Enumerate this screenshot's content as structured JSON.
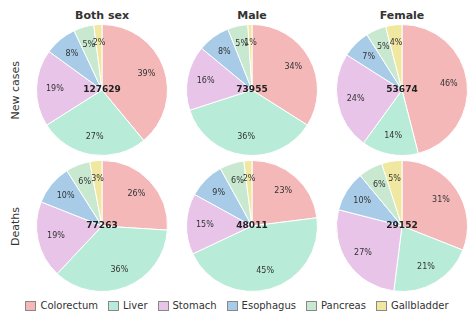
{
  "chart_data": [
    {
      "type": "pie",
      "title": "Both sex",
      "ylabel": "New cases",
      "categories": [
        "Colorectum",
        "Liver",
        "Stomach",
        "Esophagus",
        "Pancreas",
        "Gallbladder"
      ],
      "values": [
        39,
        27,
        19,
        8,
        5,
        2
      ],
      "value_labels": [
        "39%",
        "27%",
        "19%",
        "8%",
        "5%",
        "2%"
      ],
      "colors": [
        "#f4b8b8",
        "#b8ecd8",
        "#e8c4e8",
        "#a8cce8",
        "#c8e8d0",
        "#f0e8a0"
      ],
      "data_labels": true,
      "annotations": [
        {
          "text": "127629"
        }
      ],
      "legend": "bottom"
    },
    {
      "type": "pie",
      "title": "Male",
      "categories": [
        "Colorectum",
        "Liver",
        "Stomach",
        "Esophagus",
        "Pancreas",
        "Gallbladder"
      ],
      "values": [
        34,
        36,
        16,
        8,
        5,
        1
      ],
      "value_labels": [
        "34%",
        "36%",
        "16%",
        "8%",
        "5%",
        "1%"
      ],
      "colors": [
        "#f4b8b8",
        "#b8ecd8",
        "#e8c4e8",
        "#a8cce8",
        "#c8e8d0",
        "#f0e8a0"
      ],
      "data_labels": true,
      "annotations": [
        {
          "text": "73955"
        }
      ]
    },
    {
      "type": "pie",
      "title": "Female",
      "categories": [
        "Colorectum",
        "Liver",
        "Stomach",
        "Esophagus",
        "Pancreas",
        "Gallbladder"
      ],
      "values": [
        46,
        14,
        24,
        7,
        5,
        4
      ],
      "value_labels": [
        "46%",
        "14%",
        "24%",
        "7%",
        "5%",
        "4%"
      ],
      "colors": [
        "#f4b8b8",
        "#b8ecd8",
        "#e8c4e8",
        "#a8cce8",
        "#c8e8d0",
        "#f0e8a0"
      ],
      "data_labels": true,
      "annotations": [
        {
          "text": "53674"
        }
      ]
    },
    {
      "type": "pie",
      "ylabel": "Deaths",
      "categories": [
        "Colorectum",
        "Liver",
        "Stomach",
        "Esophagus",
        "Pancreas",
        "Gallbladder"
      ],
      "values": [
        26,
        36,
        19,
        10,
        6,
        3
      ],
      "value_labels": [
        "26%",
        "36%",
        "19%",
        "10%",
        "6%",
        "3%"
      ],
      "colors": [
        "#f4b8b8",
        "#b8ecd8",
        "#e8c4e8",
        "#a8cce8",
        "#c8e8d0",
        "#f0e8a0"
      ],
      "data_labels": true,
      "annotations": [
        {
          "text": "77263"
        }
      ]
    },
    {
      "type": "pie",
      "categories": [
        "Colorectum",
        "Liver",
        "Stomach",
        "Esophagus",
        "Pancreas",
        "Gallbladder"
      ],
      "values": [
        23,
        45,
        15,
        9,
        6,
        2
      ],
      "value_labels": [
        "23%",
        "45%",
        "15%",
        "9%",
        "6%",
        "2%"
      ],
      "colors": [
        "#f4b8b8",
        "#b8ecd8",
        "#e8c4e8",
        "#a8cce8",
        "#c8e8d0",
        "#f0e8a0"
      ],
      "data_labels": true,
      "annotations": [
        {
          "text": "48011"
        }
      ]
    },
    {
      "type": "pie",
      "categories": [
        "Colorectum",
        "Liver",
        "Stomach",
        "Esophagus",
        "Pancreas",
        "Gallbladder"
      ],
      "values": [
        31,
        21,
        27,
        10,
        6,
        5
      ],
      "value_labels": [
        "31%",
        "21%",
        "27%",
        "10%",
        "6%",
        "5%"
      ],
      "colors": [
        "#f4b8b8",
        "#b8ecd8",
        "#e8c4e8",
        "#a8cce8",
        "#c8e8d0",
        "#f0e8a0"
      ],
      "data_labels": true,
      "annotations": [
        {
          "text": "29152"
        }
      ]
    }
  ]
}
